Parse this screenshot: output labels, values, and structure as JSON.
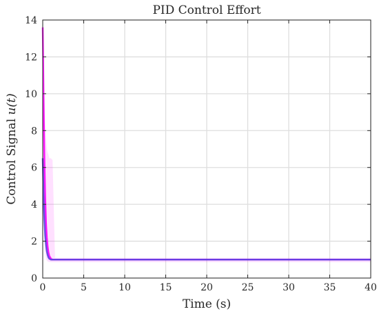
{
  "chart_data": {
    "type": "line",
    "title": "PID Control Effort",
    "xlabel": "Time (s)",
    "ylabel_prefix": "Control Signal ",
    "ylabel_math": "u(t)",
    "xlim": [
      0,
      40
    ],
    "ylim": [
      0,
      14
    ],
    "xticks": [
      0,
      5,
      10,
      15,
      20,
      25,
      30,
      35,
      40
    ],
    "yticks": [
      0,
      2,
      4,
      6,
      8,
      10,
      12,
      14
    ],
    "grid": true,
    "series": [
      {
        "color": "#ff00ff",
        "x": [
          0,
          0.05,
          0.1,
          0.2,
          0.3,
          0.4,
          0.5,
          0.6,
          0.7,
          0.8,
          1.0,
          1.2,
          1.5,
          2,
          3,
          5,
          10,
          20,
          30,
          40
        ],
        "y": [
          13.6,
          12.0,
          9.8,
          6.6,
          4.4,
          3.0,
          2.2,
          1.7,
          1.4,
          1.2,
          1.05,
          1.0,
          1.0,
          1.0,
          1.0,
          1.0,
          1.0,
          1.0,
          1.0,
          1.0
        ],
        "band": {
          "color": "#ff00ff",
          "x": [
            0,
            0.05,
            0.1,
            0.2,
            0.3,
            0.4,
            0.5,
            0.6,
            0.7,
            0.8,
            1.0,
            1.2,
            1.5,
            2,
            3,
            5,
            10,
            20,
            30,
            40
          ],
          "lower": [
            4.5,
            4.0,
            3.2,
            2.2,
            1.5,
            1.1,
            0.95,
            0.9,
            0.88,
            0.87,
            0.86,
            0.86,
            0.86,
            0.86,
            0.86,
            0.86,
            0.86,
            0.86,
            0.86,
            0.86
          ],
          "upper": [
            13.6,
            13.2,
            12.5,
            10.5,
            8.5,
            7.6,
            7.0,
            6.8,
            6.7,
            6.5,
            6.5,
            6.4,
            1.1,
            1.1,
            1.1,
            1.1,
            1.1,
            1.1,
            1.1,
            1.1
          ]
        }
      },
      {
        "color": "#5a3fe0",
        "x": [
          0,
          0.05,
          0.1,
          0.2,
          0.3,
          0.4,
          0.5,
          0.6,
          0.7,
          0.8,
          1.0,
          1.2,
          1.5,
          2,
          3,
          5,
          10,
          20,
          30,
          40
        ],
        "y": [
          6.5,
          5.5,
          4.5,
          3.2,
          2.3,
          1.8,
          1.45,
          1.25,
          1.12,
          1.05,
          1.0,
          1.0,
          1.0,
          1.0,
          1.0,
          1.0,
          1.0,
          1.0,
          1.0,
          1.0
        ]
      }
    ]
  }
}
